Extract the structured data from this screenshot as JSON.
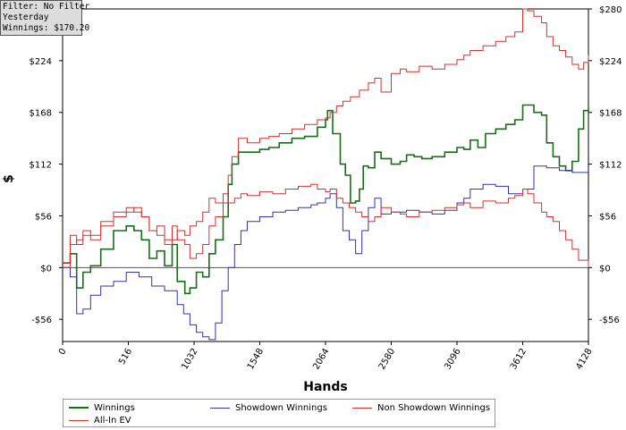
{
  "info_box": {
    "filter": "Filter: No Filter",
    "period": "Yesterday",
    "winnings": "Winnings: $170.20"
  },
  "colors": {
    "winnings": "#1a6b1a",
    "showdown": "#3333aa",
    "non_showdown": "#cc3333",
    "allin_ev": "#cc3333",
    "zero_line": "#555555",
    "axis": "#000000"
  },
  "chart_data": {
    "type": "line",
    "xlabel": "Hands",
    "ylabel": "$",
    "xlim": [
      0,
      4128
    ],
    "ylim": [
      -80,
      280
    ],
    "x_ticks": [
      0,
      516,
      1032,
      1548,
      2064,
      2580,
      3096,
      3612,
      4128
    ],
    "y_ticks": [
      -56,
      0,
      56,
      112,
      168,
      224,
      280
    ],
    "y_tick_labels": [
      "-$56",
      "$0",
      "$56",
      "$112",
      "$168",
      "$224",
      "$280"
    ],
    "grid": false,
    "legend_position": "bottom",
    "series": [
      {
        "name": "Winnings",
        "color": "#1a6b1a",
        "width": 1.6,
        "x": [
          0,
          60,
          110,
          160,
          220,
          300,
          400,
          500,
          560,
          620,
          680,
          740,
          800,
          860,
          900,
          960,
          1000,
          1050,
          1100,
          1150,
          1200,
          1260,
          1300,
          1330,
          1380,
          1450,
          1548,
          1620,
          1700,
          1800,
          1900,
          2000,
          2064,
          2080,
          2120,
          2180,
          2220,
          2260,
          2300,
          2330,
          2360,
          2400,
          2450,
          2500,
          2580,
          2650,
          2700,
          2760,
          2820,
          2900,
          3000,
          3096,
          3150,
          3200,
          3260,
          3320,
          3400,
          3480,
          3550,
          3612,
          3700,
          3760,
          3800,
          3850,
          3900,
          3950,
          4000,
          4050,
          4090,
          4128
        ],
        "y": [
          5,
          15,
          -22,
          -5,
          2,
          20,
          40,
          45,
          40,
          30,
          10,
          18,
          2,
          25,
          -15,
          -28,
          -22,
          -5,
          -10,
          15,
          30,
          55,
          90,
          112,
          125,
          125,
          128,
          130,
          135,
          140,
          142,
          152,
          160,
          170,
          145,
          112,
          100,
          70,
          72,
          85,
          110,
          108,
          125,
          118,
          112,
          115,
          122,
          120,
          118,
          120,
          125,
          130,
          128,
          138,
          130,
          145,
          150,
          155,
          160,
          176,
          168,
          165,
          135,
          120,
          110,
          105,
          115,
          150,
          170,
          172
        ]
      },
      {
        "name": "Showdown Winnings",
        "color": "#3333aa",
        "width": 1,
        "x": [
          0,
          60,
          110,
          160,
          220,
          300,
          400,
          500,
          600,
          700,
          800,
          900,
          950,
          1000,
          1050,
          1100,
          1150,
          1200,
          1250,
          1300,
          1350,
          1400,
          1450,
          1548,
          1650,
          1750,
          1850,
          1950,
          2000,
          2064,
          2100,
          2150,
          2200,
          2250,
          2300,
          2350,
          2400,
          2450,
          2500,
          2580,
          2700,
          2800,
          2900,
          3000,
          3096,
          3150,
          3200,
          3300,
          3400,
          3500,
          3612,
          3700,
          3800,
          3900,
          4000,
          4128
        ],
        "y": [
          0,
          -10,
          -50,
          -45,
          -30,
          -20,
          -15,
          -5,
          -10,
          -20,
          -25,
          -40,
          -50,
          -62,
          -70,
          -75,
          -78,
          -60,
          -25,
          0,
          25,
          40,
          50,
          55,
          60,
          62,
          65,
          68,
          70,
          75,
          80,
          65,
          40,
          30,
          15,
          40,
          65,
          75,
          58,
          60,
          62,
          60,
          58,
          62,
          70,
          75,
          85,
          90,
          88,
          80,
          85,
          110,
          108,
          105,
          103,
          103
        ]
      },
      {
        "name": "Non Showdown Winnings",
        "color": "#cc3333",
        "width": 1,
        "x": [
          0,
          60,
          110,
          160,
          220,
          300,
          400,
          500,
          560,
          620,
          680,
          740,
          800,
          860,
          900,
          960,
          1000,
          1050,
          1100,
          1150,
          1200,
          1260,
          1300,
          1350,
          1400,
          1450,
          1548,
          1650,
          1750,
          1850,
          1950,
          2000,
          2064,
          2100,
          2150,
          2200,
          2250,
          2300,
          2350,
          2400,
          2450,
          2500,
          2580,
          2650,
          2700,
          2800,
          2900,
          3000,
          3096,
          3150,
          3200,
          3300,
          3400,
          3500,
          3550,
          3612,
          3650,
          3700,
          3760,
          3800,
          3850,
          3900,
          3950,
          4000,
          4050,
          4128
        ],
        "y": [
          0,
          25,
          30,
          35,
          30,
          45,
          55,
          60,
          65,
          55,
          40,
          45,
          25,
          30,
          40,
          35,
          45,
          50,
          60,
          75,
          70,
          80,
          70,
          75,
          80,
          78,
          82,
          80,
          85,
          88,
          90,
          85,
          82,
          85,
          75,
          70,
          65,
          60,
          55,
          50,
          55,
          65,
          60,
          58,
          55,
          60,
          62,
          65,
          68,
          70,
          65,
          72,
          70,
          75,
          78,
          85,
          80,
          70,
          60,
          55,
          50,
          40,
          30,
          20,
          8,
          0
        ]
      },
      {
        "name": "All-In EV",
        "color": "#cc3333",
        "width": 1,
        "x": [
          0,
          60,
          110,
          160,
          220,
          300,
          400,
          500,
          560,
          620,
          680,
          740,
          800,
          860,
          900,
          960,
          1000,
          1050,
          1100,
          1150,
          1200,
          1260,
          1300,
          1330,
          1380,
          1450,
          1548,
          1620,
          1700,
          1800,
          1900,
          2000,
          2064,
          2100,
          2150,
          2200,
          2260,
          2330,
          2400,
          2450,
          2500,
          2580,
          2650,
          2700,
          2800,
          2900,
          3000,
          3096,
          3150,
          3200,
          3300,
          3400,
          3480,
          3550,
          3612,
          3650,
          3700,
          3760,
          3800,
          3850,
          3900,
          3950,
          4000,
          4050,
          4090,
          4128
        ],
        "y": [
          5,
          35,
          25,
          40,
          35,
          50,
          60,
          65,
          60,
          55,
          40,
          35,
          30,
          45,
          30,
          25,
          10,
          15,
          25,
          45,
          55,
          70,
          100,
          120,
          140,
          135,
          140,
          142,
          145,
          150,
          155,
          160,
          162,
          168,
          175,
          180,
          185,
          192,
          200,
          205,
          190,
          210,
          215,
          212,
          218,
          215,
          220,
          225,
          230,
          235,
          240,
          245,
          250,
          255,
          280,
          278,
          272,
          265,
          250,
          240,
          235,
          228,
          220,
          215,
          222,
          230
        ]
      }
    ]
  },
  "legend": {
    "items": [
      "Winnings",
      "Showdown Winnings",
      "Non Showdown Winnings",
      "All-In EV"
    ]
  }
}
